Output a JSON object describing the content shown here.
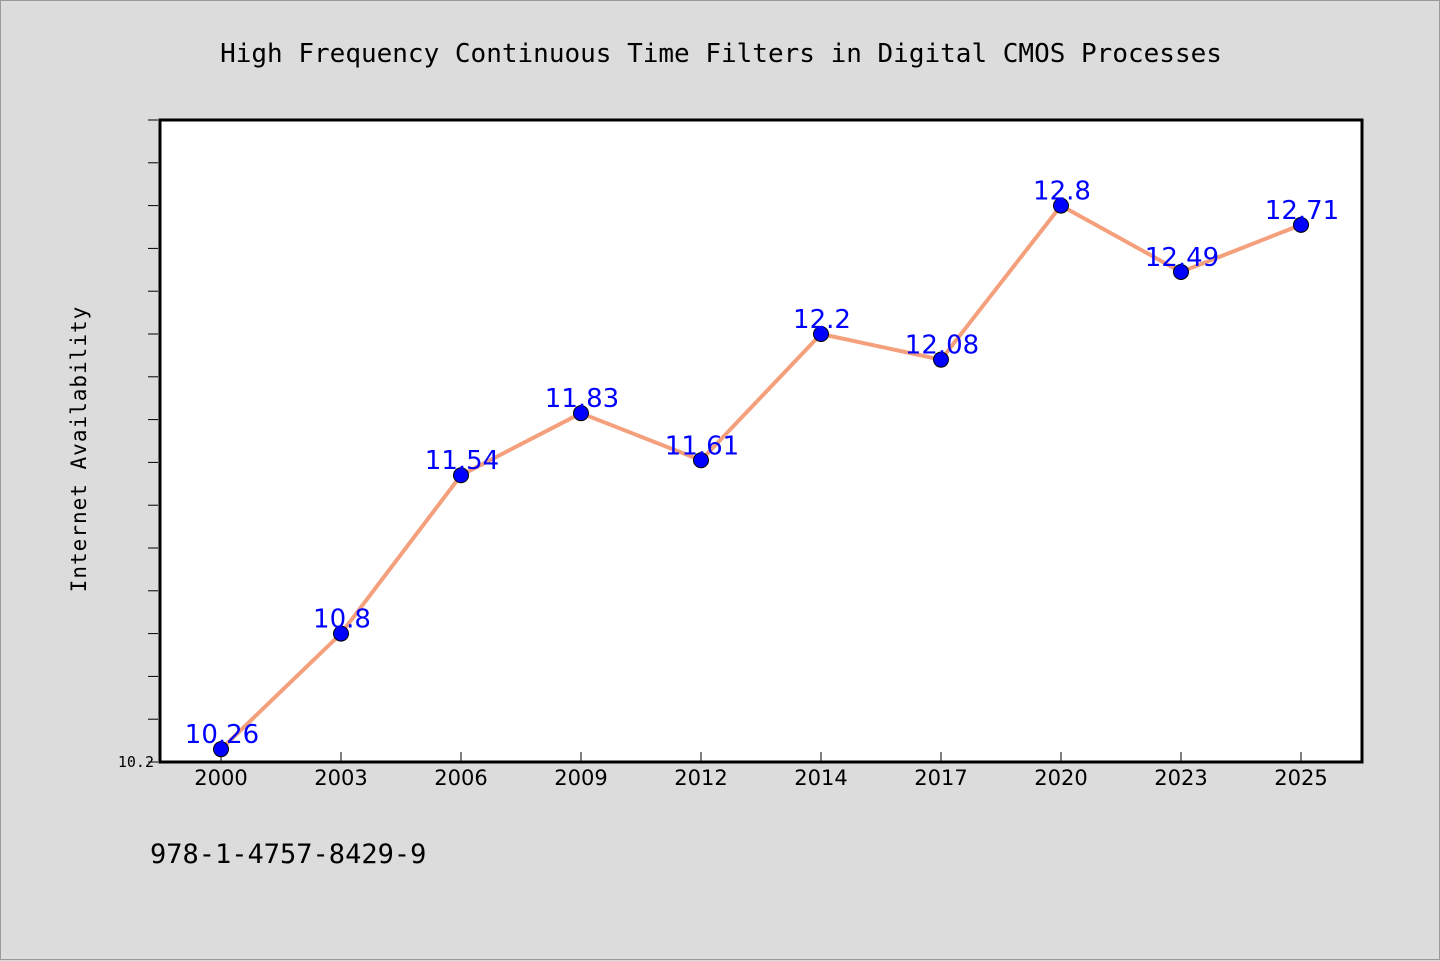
{
  "chart_data": {
    "type": "line",
    "title": "High Frequency Continuous Time Filters in Digital CMOS Processes",
    "xlabel": "",
    "ylabel": "Internet Availability",
    "categories": [
      "2000",
      "2003",
      "2006",
      "2009",
      "2012",
      "2014",
      "2017",
      "2020",
      "2023",
      "2025"
    ],
    "series": [
      {
        "values": [
          10.26,
          10.8,
          11.54,
          11.83,
          11.61,
          12.2,
          12.08,
          12.8,
          12.49,
          12.71
        ],
        "labels": [
          "10.26",
          "10.8",
          "11.54",
          "11.83",
          "11.61",
          "12.2",
          "12.08",
          "12.8",
          "12.49",
          "12.71"
        ],
        "line_color": "#f4a07c",
        "marker_color": "#0000ff"
      }
    ],
    "ylim": [
      10.2,
      13.2
    ],
    "yticks_labeled": [
      "10.2"
    ],
    "grid": false,
    "legend": "none"
  },
  "footer": {
    "isbn": "978-1-4757-8429-9"
  }
}
